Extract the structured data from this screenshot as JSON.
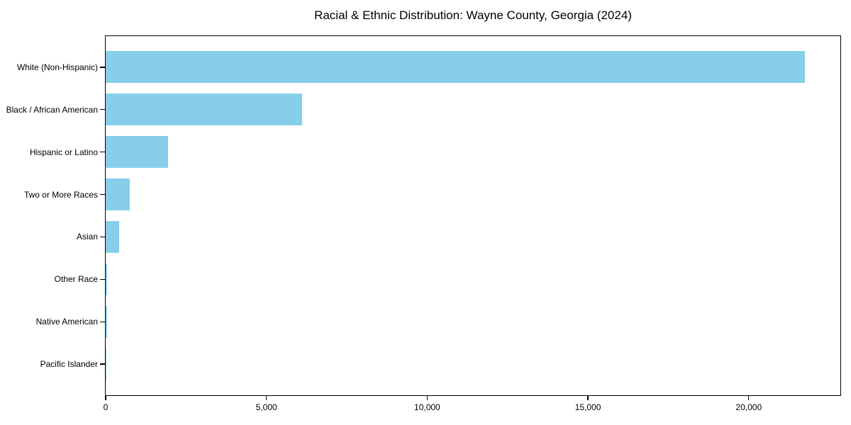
{
  "chart_data": {
    "type": "bar",
    "orientation": "horizontal",
    "title": "Racial & Ethnic Distribution: Wayne County, Georgia (2024)",
    "xlabel": "",
    "ylabel": "",
    "categories": [
      "White (Non-Hispanic)",
      "Black / African American",
      "Hispanic or Latino",
      "Two or More Races",
      "Asian",
      "Other Race",
      "Native American",
      "Pacific Islander"
    ],
    "values": [
      21750,
      6100,
      1950,
      760,
      410,
      45,
      35,
      10
    ],
    "xlim": [
      0,
      22850
    ],
    "xticks": [
      0,
      5000,
      10000,
      15000,
      20000
    ],
    "xtick_labels": [
      "0",
      "5,000",
      "10,000",
      "15,000",
      "20,000"
    ],
    "bar_color": "#87CEEB",
    "axis_color": "#000000",
    "grid": false,
    "legend": null
  }
}
